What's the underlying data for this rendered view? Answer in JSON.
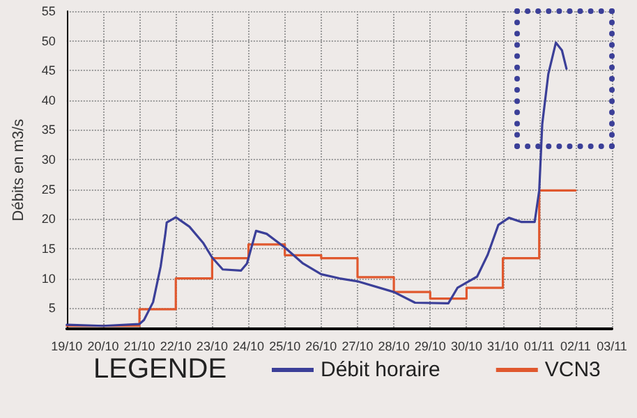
{
  "chart_data": {
    "type": "line",
    "ylabel": "Débits en m3/s",
    "legend_title": "LEGENDE",
    "legend": "bottom",
    "grid": true,
    "marker": "none",
    "xlim": [
      "--10-19",
      "--11-03"
    ],
    "xticks": [
      {
        "value": "--10-19",
        "label": "19/10"
      },
      {
        "value": "--10-20",
        "label": "20/10"
      },
      {
        "value": "--10-21",
        "label": "21/10"
      },
      {
        "value": "--10-22",
        "label": "22/10"
      },
      {
        "value": "--10-23",
        "label": "23/10"
      },
      {
        "value": "--10-24",
        "label": "24/10"
      },
      {
        "value": "--10-25",
        "label": "25/10"
      },
      {
        "value": "--10-26",
        "label": "26/10"
      },
      {
        "value": "--10-27",
        "label": "27/10"
      },
      {
        "value": "--10-28",
        "label": "28/10"
      },
      {
        "value": "--10-29",
        "label": "29/10"
      },
      {
        "value": "--10-30",
        "label": "30/10"
      },
      {
        "value": "--10-31",
        "label": "31/10"
      },
      {
        "value": "--11-01",
        "label": "01/11"
      },
      {
        "value": "--11-02",
        "label": "02/11"
      },
      {
        "value": "--11-03",
        "label": "03/11"
      }
    ],
    "ylim": [
      1.5,
      55
    ],
    "yticks": [
      5,
      10,
      15,
      20,
      25,
      30,
      35,
      40,
      45,
      50,
      55
    ],
    "series": [
      {
        "name": "Débit horaire",
        "color": "#3b3f98",
        "x": [
          "--10-19T00:00",
          "--10-20T00:00",
          "--10-21T00:00",
          "--10-21T03:00",
          "--10-21T09:00",
          "--10-21T14:00",
          "--10-21T17:00",
          "--10-21T18:00",
          "--10-22T00:00",
          "--10-22T09:00",
          "--10-22T18:00",
          "--10-23T00:00",
          "--10-23T07:00",
          "--10-23T19:00",
          "--10-23T23:00",
          "--10-24T05:00",
          "--10-24T12:00",
          "--10-25T00:00",
          "--10-25T12:00",
          "--10-26T00:00",
          "--10-26T12:00",
          "--10-27T00:00",
          "--10-28T00:00",
          "--10-28T14:00",
          "--10-29T12:00",
          "--10-29T18:00",
          "--10-30T00:00",
          "--10-30T07:00",
          "--10-30T14:00",
          "--10-30T21:00",
          "--10-31T04:00",
          "--10-31T12:00",
          "--10-31T21:00",
          "--11-01T00:00",
          "--11-01T02:00",
          "--11-01T06:00",
          "--11-01T11:00",
          "--11-01T15:00",
          "--11-01T18:00"
        ],
        "values": [
          2.2,
          2.0,
          2.3,
          3,
          6,
          12,
          17.3,
          19.4,
          20.3,
          18.7,
          16,
          13.5,
          11.5,
          11.3,
          12.5,
          18,
          17.5,
          15.2,
          12.5,
          10.7,
          10,
          9.5,
          7.7,
          5.9,
          5.8,
          8.4,
          9.3,
          10.3,
          14,
          19,
          20.2,
          19.5,
          19.5,
          24.8,
          36,
          44.4,
          49.7,
          48.4,
          45.3
        ]
      },
      {
        "name": "VCN3",
        "type": "step",
        "color": "#e0582e",
        "x": [
          "--10-19",
          "--10-20",
          "--10-21",
          "--10-22",
          "--10-23",
          "--10-24",
          "--10-25",
          "--10-26",
          "--10-27",
          "--10-28",
          "--10-29",
          "--10-30",
          "--10-31",
          "--11-01",
          "--11-02"
        ],
        "values": [
          2.0,
          2.0,
          4.8,
          10,
          13.4,
          15.7,
          13.9,
          13.4,
          10.2,
          7.7,
          6.6,
          8.4,
          13.4,
          24.8,
          24.8
        ]
      }
    ]
  }
}
